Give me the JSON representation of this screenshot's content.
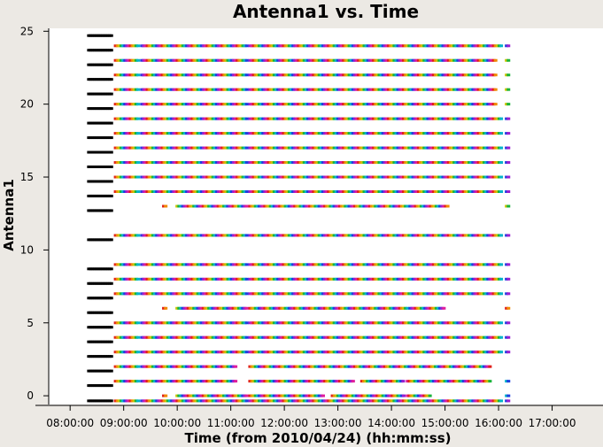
{
  "chart_data": {
    "type": "scatter",
    "title": "Antenna1 vs. Time",
    "xlabel": "Time (from 2010/04/24) (hh:mm:ss)",
    "ylabel": "Antenna1",
    "xlim_hours": [
      7.6,
      17.95
    ],
    "ylim": [
      -0.6,
      25.2
    ],
    "x_ticks_hours": [
      8,
      9,
      10,
      11,
      12,
      13,
      14,
      15,
      16,
      17
    ],
    "x_tick_labels": [
      "08:00:00",
      "09:00:00",
      "10:00:00",
      "11:00:00",
      "12:00:00",
      "13:00:00",
      "14:00:00",
      "15:00:00",
      "16:00:00",
      "17:00:00"
    ],
    "y_ticks": [
      0,
      5,
      10,
      15,
      20,
      25
    ],
    "y_tick_labels": [
      "0",
      "5",
      "10",
      "15",
      "20",
      "25"
    ],
    "grid": false,
    "colors": {
      "background": "#ece9e4",
      "plot_area": "#ffffff",
      "initial_scan": "#000000",
      "point_cycle": [
        "#e0201b",
        "#f08a00",
        "#c8c400",
        "#19b43a",
        "#00b4c8",
        "#1f3fe0",
        "#9a1fd0",
        "#e01f9a"
      ]
    },
    "series": [
      {
        "antenna": 24,
        "segments": [
          [
            8.85,
            9.3
          ],
          [
            9.34,
            11.3
          ],
          [
            11.36,
            16.05
          ],
          [
            16.15,
            16.2
          ]
        ]
      },
      {
        "antenna": 23,
        "segments": [
          [
            8.85,
            9.3
          ],
          [
            9.34,
            11.3
          ],
          [
            11.36,
            15.95
          ],
          [
            16.15,
            16.2
          ]
        ]
      },
      {
        "antenna": 22,
        "segments": [
          [
            8.85,
            9.3
          ],
          [
            9.34,
            11.3
          ],
          [
            11.36,
            15.95
          ],
          [
            16.15,
            16.2
          ]
        ]
      },
      {
        "antenna": 21,
        "segments": [
          [
            8.85,
            9.3
          ],
          [
            9.34,
            11.3
          ],
          [
            11.36,
            15.95
          ],
          [
            16.15,
            16.2
          ]
        ]
      },
      {
        "antenna": 20,
        "segments": [
          [
            8.85,
            9.3
          ],
          [
            9.34,
            11.3
          ],
          [
            11.36,
            15.95
          ],
          [
            16.15,
            16.2
          ]
        ]
      },
      {
        "antenna": 19,
        "segments": [
          [
            8.85,
            9.3
          ],
          [
            9.34,
            11.3
          ],
          [
            11.36,
            16.05
          ],
          [
            16.15,
            16.2
          ]
        ]
      },
      {
        "antenna": 18,
        "segments": [
          [
            8.85,
            9.3
          ],
          [
            9.34,
            11.3
          ],
          [
            11.36,
            16.05
          ],
          [
            16.15,
            16.2
          ]
        ]
      },
      {
        "antenna": 17,
        "segments": [
          [
            8.85,
            9.3
          ],
          [
            9.34,
            11.3
          ],
          [
            11.36,
            16.05
          ],
          [
            16.15,
            16.2
          ]
        ]
      },
      {
        "antenna": 16,
        "segments": [
          [
            8.85,
            9.3
          ],
          [
            9.34,
            11.3
          ],
          [
            11.36,
            16.05
          ],
          [
            16.15,
            16.2
          ]
        ]
      },
      {
        "antenna": 15,
        "segments": [
          [
            8.85,
            9.3
          ],
          [
            9.34,
            11.3
          ],
          [
            11.36,
            16.05
          ],
          [
            16.15,
            16.2
          ]
        ]
      },
      {
        "antenna": 14,
        "segments": [
          [
            8.85,
            9.3
          ],
          [
            9.34,
            11.3
          ],
          [
            11.36,
            16.05
          ],
          [
            16.15,
            16.2
          ]
        ]
      },
      {
        "antenna": 13,
        "segments": [
          [
            9.75,
            9.8
          ],
          [
            10.0,
            11.3
          ],
          [
            11.36,
            14.3
          ],
          [
            14.35,
            15.05
          ],
          [
            16.15,
            16.2
          ]
        ]
      },
      {
        "antenna": 11,
        "segments": [
          [
            8.85,
            9.3
          ],
          [
            9.34,
            11.3
          ],
          [
            11.36,
            16.05
          ],
          [
            16.15,
            16.2
          ]
        ]
      },
      {
        "antenna": 9,
        "segments": [
          [
            8.85,
            9.3
          ],
          [
            9.34,
            11.3
          ],
          [
            11.36,
            16.05
          ],
          [
            16.15,
            16.2
          ]
        ]
      },
      {
        "antenna": 8,
        "segments": [
          [
            8.85,
            9.3
          ],
          [
            9.34,
            11.3
          ],
          [
            11.36,
            16.05
          ],
          [
            16.15,
            16.2
          ]
        ]
      },
      {
        "antenna": 7,
        "segments": [
          [
            8.85,
            9.3
          ],
          [
            9.34,
            11.3
          ],
          [
            11.36,
            16.05
          ],
          [
            16.15,
            16.2
          ]
        ]
      },
      {
        "antenna": 6,
        "segments": [
          [
            9.75,
            9.8
          ],
          [
            10.0,
            11.3
          ],
          [
            11.36,
            14.3
          ],
          [
            14.35,
            15.0
          ],
          [
            16.15,
            16.2
          ]
        ]
      },
      {
        "antenna": 5,
        "segments": [
          [
            8.85,
            9.3
          ],
          [
            9.34,
            11.3
          ],
          [
            11.36,
            16.05
          ],
          [
            16.15,
            16.2
          ]
        ]
      },
      {
        "antenna": 4,
        "segments": [
          [
            8.85,
            9.3
          ],
          [
            9.34,
            11.3
          ],
          [
            11.36,
            16.05
          ],
          [
            16.15,
            16.2
          ]
        ]
      },
      {
        "antenna": 3,
        "segments": [
          [
            8.85,
            9.3
          ],
          [
            9.34,
            11.3
          ],
          [
            11.36,
            16.05
          ],
          [
            16.15,
            16.2
          ]
        ]
      },
      {
        "antenna": 2,
        "segments": [
          [
            8.85,
            9.3
          ],
          [
            9.34,
            11.1
          ],
          [
            11.36,
            15.85
          ]
        ]
      },
      {
        "antenna": 1,
        "segments": [
          [
            8.85,
            9.3
          ],
          [
            9.34,
            11.1
          ],
          [
            11.36,
            13.3
          ],
          [
            13.45,
            14.25
          ],
          [
            14.3,
            15.85
          ],
          [
            16.15,
            16.2
          ]
        ]
      },
      {
        "antenna": 0,
        "segments": [
          [
            9.75,
            9.8
          ],
          [
            10.0,
            11.3
          ],
          [
            11.36,
            12.75
          ],
          [
            12.9,
            14.25
          ],
          [
            14.3,
            14.75
          ],
          [
            16.15,
            16.2
          ]
        ]
      },
      {
        "antenna": -0.35,
        "segments": [
          [
            8.85,
            9.3
          ],
          [
            9.34,
            11.3
          ],
          [
            11.36,
            16.05
          ],
          [
            16.15,
            16.2
          ]
        ]
      }
    ],
    "initial_scan": {
      "x_range_hours": [
        8.35,
        8.8
      ],
      "antennas": [
        -0.35,
        0.7,
        1.7,
        2.7,
        3.7,
        4.7,
        5.7,
        6.7,
        7.7,
        8.7,
        10.7,
        12.7,
        13.7,
        14.7,
        15.7,
        16.7,
        17.7,
        18.7,
        19.7,
        20.7,
        21.7,
        22.7,
        23.7,
        24.7
      ]
    }
  }
}
